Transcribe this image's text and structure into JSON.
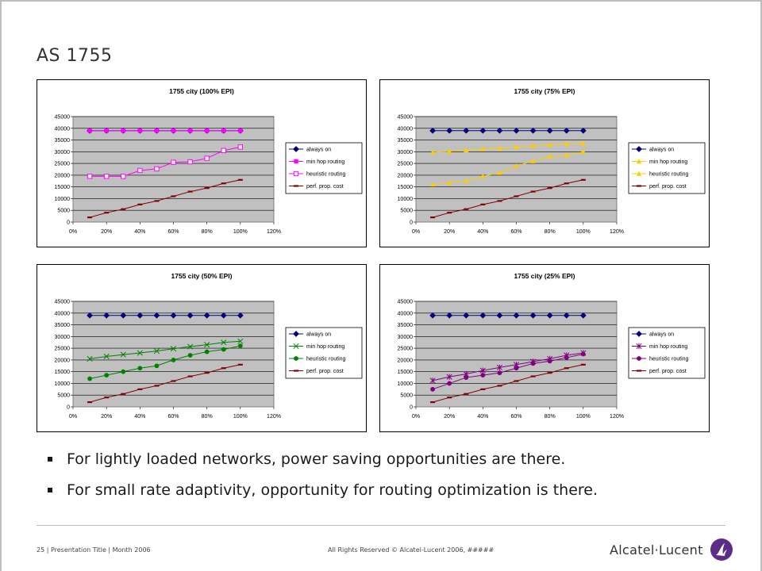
{
  "slide": {
    "title": "AS 1755",
    "bullets": [
      "For lightly loaded networks, power saving opportunities are there.",
      "For small rate adaptivity, opportunity for routing optimization is there."
    ],
    "footer_left": "25 | Presentation Title | Month 2006",
    "footer_center": "All Rights Reserved © Alcatel-Lucent 2006, #####",
    "logo_text": "Alcatel·Lucent",
    "colors": {
      "plot_bg": "#c0c0c0",
      "always_on": "#000080",
      "perf": "#800000"
    }
  },
  "chart_data": [
    {
      "type": "line",
      "title": "1755 city (100% EPI)",
      "x": [
        10,
        20,
        30,
        40,
        50,
        60,
        70,
        80,
        90,
        100
      ],
      "xticks": [
        "0%",
        "20%",
        "40%",
        "60%",
        "80%",
        "100%",
        "120%"
      ],
      "yticks": [
        "0",
        "5000",
        "10000",
        "15000",
        "20000",
        "25000",
        "30000",
        "35000",
        "40000",
        "45000"
      ],
      "xlim": [
        0,
        120
      ],
      "ylim": [
        0,
        45000
      ],
      "legend": "right",
      "series": [
        {
          "name": "always on",
          "color": "#000080",
          "marker": "diamond",
          "values": [
            39000,
            39000,
            39000,
            39000,
            39000,
            39000,
            39000,
            39000,
            39000,
            39000
          ]
        },
        {
          "name": "min hop routing",
          "color": "#ff00ff",
          "marker": "square",
          "values": [
            39000,
            39000,
            39000,
            39000,
            39000,
            39000,
            39000,
            39000,
            39000,
            39000
          ]
        },
        {
          "name": "heuristic routing",
          "color": "#ff00ff",
          "marker": "square-open",
          "values": [
            19500,
            19500,
            19500,
            22000,
            22700,
            25500,
            25700,
            27200,
            30500,
            32000
          ]
        },
        {
          "name": "perf. prop. cost",
          "color": "#800000",
          "marker": "dash",
          "values": [
            2000,
            4000,
            5500,
            7500,
            9000,
            11000,
            13000,
            14500,
            16500,
            18000
          ]
        }
      ]
    },
    {
      "type": "line",
      "title": "1755 city (75% EPI)",
      "x": [
        10,
        20,
        30,
        40,
        50,
        60,
        70,
        80,
        90,
        100
      ],
      "xticks": [
        "0%",
        "20%",
        "40%",
        "60%",
        "80%",
        "100%",
        "120%"
      ],
      "yticks": [
        "0",
        "5000",
        "10000",
        "15000",
        "20000",
        "25000",
        "30000",
        "35000",
        "40000",
        "45000"
      ],
      "xlim": [
        0,
        120
      ],
      "ylim": [
        0,
        45000
      ],
      "legend": "right",
      "series": [
        {
          "name": "always on",
          "color": "#000080",
          "marker": "diamond",
          "values": [
            39000,
            39000,
            39000,
            39000,
            39000,
            39000,
            39000,
            39000,
            39000,
            39000
          ]
        },
        {
          "name": "min hop routing",
          "color": "#ffcc00",
          "marker": "triangle",
          "values": [
            29800,
            30200,
            30700,
            31200,
            31500,
            32000,
            32500,
            33000,
            33400,
            33500
          ]
        },
        {
          "name": "heuristic routing",
          "color": "#ffcc00",
          "marker": "triangle",
          "values": [
            16000,
            16800,
            17500,
            19500,
            21000,
            24000,
            26000,
            28000,
            28500,
            30000
          ]
        },
        {
          "name": "perf. prop. cost",
          "color": "#800000",
          "marker": "dash",
          "values": [
            2000,
            4000,
            5500,
            7500,
            9000,
            11000,
            13000,
            14500,
            16500,
            18000
          ]
        }
      ]
    },
    {
      "type": "line",
      "title": "1755 city (50% EPI)",
      "x": [
        10,
        20,
        30,
        40,
        50,
        60,
        70,
        80,
        90,
        100
      ],
      "xticks": [
        "0%",
        "20%",
        "40%",
        "60%",
        "80%",
        "100%",
        "120%"
      ],
      "yticks": [
        "0",
        "5000",
        "10000",
        "15000",
        "20000",
        "25000",
        "30000",
        "35000",
        "40000",
        "45000"
      ],
      "xlim": [
        0,
        120
      ],
      "ylim": [
        0,
        45000
      ],
      "legend": "right",
      "series": [
        {
          "name": "always on",
          "color": "#000080",
          "marker": "diamond",
          "values": [
            39000,
            39000,
            39000,
            39000,
            39000,
            39000,
            39000,
            39000,
            39000,
            39000
          ]
        },
        {
          "name": "min hop routing",
          "color": "#008000",
          "marker": "x",
          "values": [
            20500,
            21500,
            22300,
            23000,
            23800,
            24800,
            25700,
            26500,
            27500,
            28000
          ]
        },
        {
          "name": "heuristic routing",
          "color": "#008000",
          "marker": "circle",
          "values": [
            12000,
            13500,
            15000,
            16500,
            17500,
            20000,
            22000,
            23500,
            24500,
            26000
          ]
        },
        {
          "name": "perf. prop. cost",
          "color": "#800000",
          "marker": "dash",
          "values": [
            2000,
            4000,
            5500,
            7500,
            9000,
            11000,
            13000,
            14500,
            16500,
            18000
          ]
        }
      ]
    },
    {
      "type": "line",
      "title": "1755 city (25% EPI)",
      "x": [
        10,
        20,
        30,
        40,
        50,
        60,
        70,
        80,
        90,
        100
      ],
      "xticks": [
        "0%",
        "20%",
        "40%",
        "60%",
        "80%",
        "100%",
        "120%"
      ],
      "yticks": [
        "0",
        "5000",
        "10000",
        "15000",
        "20000",
        "25000",
        "30000",
        "35000",
        "40000",
        "45000"
      ],
      "xlim": [
        0,
        120
      ],
      "ylim": [
        0,
        45000
      ],
      "legend": "right",
      "series": [
        {
          "name": "always on",
          "color": "#000080",
          "marker": "diamond",
          "values": [
            39000,
            39000,
            39000,
            39000,
            39000,
            39000,
            39000,
            39000,
            39000,
            39000
          ]
        },
        {
          "name": "min hop routing",
          "color": "#800080",
          "marker": "star",
          "values": [
            11200,
            12800,
            14000,
            15500,
            16800,
            18000,
            19300,
            20500,
            22000,
            23000
          ]
        },
        {
          "name": "heuristic routing",
          "color": "#800080",
          "marker": "circle",
          "values": [
            7500,
            10000,
            12500,
            13500,
            14500,
            16500,
            18500,
            19500,
            21000,
            22500
          ]
        },
        {
          "name": "perf. prop. cost",
          "color": "#800000",
          "marker": "dash",
          "values": [
            2000,
            4000,
            5500,
            7500,
            9000,
            11000,
            13000,
            14500,
            16500,
            18000
          ]
        }
      ]
    }
  ]
}
